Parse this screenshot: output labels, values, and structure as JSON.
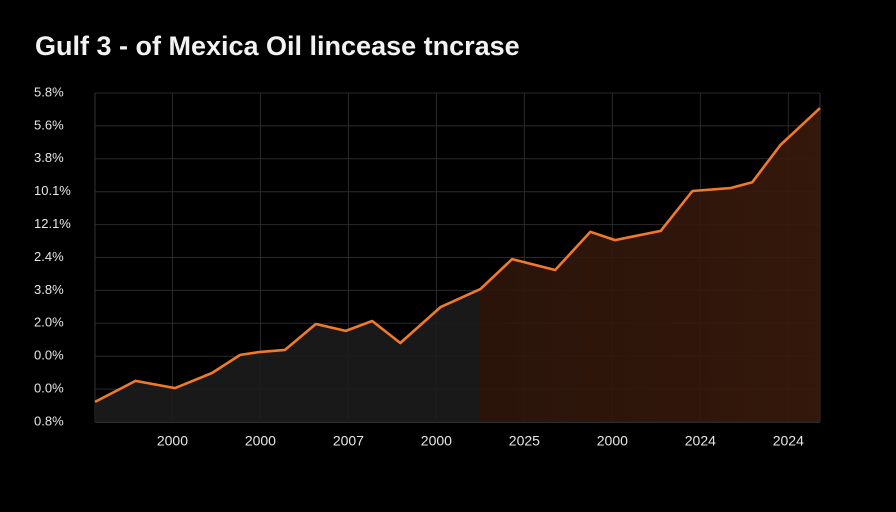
{
  "chart_data": {
    "type": "line",
    "title": "Gulf 3 - of Mexica Oil lincease tncrase",
    "x": [
      0.12,
      0.58,
      1.03,
      1.45,
      1.77,
      2.0,
      2.28,
      2.63,
      2.97,
      3.27,
      3.59,
      4.05,
      4.5,
      4.86,
      5.35,
      5.75,
      6.03,
      6.55,
      6.91,
      7.34,
      7.59,
      7.91,
      8.36
    ],
    "series": [
      {
        "color": "#f07a2a",
        "values": [
          0.61,
          1.25,
          1.03,
          1.49,
          2.04,
          2.13,
          2.19,
          2.98,
          2.77,
          3.07,
          2.4,
          3.5,
          4.04,
          4.95,
          4.62,
          5.78,
          5.53,
          5.81,
          7.02,
          7.11,
          7.29,
          8.42,
          9.54
        ]
      }
    ],
    "xlim": [
      0.12,
      8.36
    ],
    "xticks": [
      {
        "value": 1,
        "label": "2000"
      },
      {
        "value": 2,
        "label": "2000"
      },
      {
        "value": 3,
        "label": "2007"
      },
      {
        "value": 4,
        "label": "2000"
      },
      {
        "value": 5,
        "label": "2025"
      },
      {
        "value": 6,
        "label": "2000"
      },
      {
        "value": 7,
        "label": "2024"
      },
      {
        "value": 8,
        "label": "2024"
      }
    ],
    "ylim": [
      0,
      10
    ],
    "yticks": [
      {
        "value": 0,
        "label": "0.8%"
      },
      {
        "value": 1,
        "label": "0.0%"
      },
      {
        "value": 2,
        "label": "0.0%"
      },
      {
        "value": 3,
        "label": "2.0%"
      },
      {
        "value": 4,
        "label": "3.8%"
      },
      {
        "value": 5,
        "label": "2.4%"
      },
      {
        "value": 6,
        "label": "12.1%"
      },
      {
        "value": 7,
        "label": "10.1%"
      },
      {
        "value": 8,
        "label": "3.8%"
      },
      {
        "value": 9,
        "label": "5.6%"
      },
      {
        "value": 10,
        "label": "5.8%"
      }
    ],
    "grid": true
  }
}
